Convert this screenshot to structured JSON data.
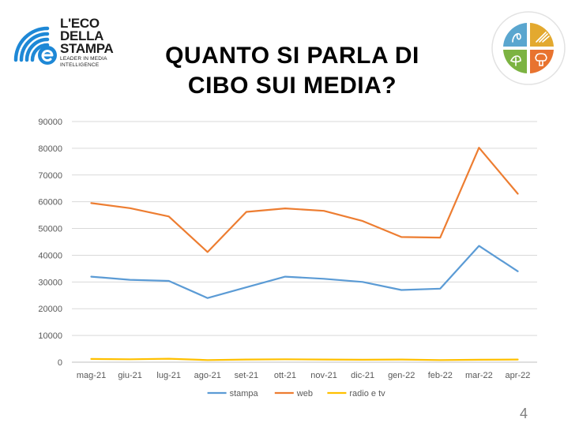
{
  "logo": {
    "line1": "L'ECO",
    "line2": "DELLA",
    "line3": "STAMPA",
    "tagline1": "LEADER IN MEDIA",
    "tagline2": "INTELLIGENCE",
    "icon": "eco-della-stampa-logo-icon",
    "color": "#1e88d6"
  },
  "title_line1": "QUANTO SI PARLA DI",
  "title_line2": "CIBO SUI MEDIA?",
  "badge_icon": "food-categories-badge-icon",
  "page_number": "4",
  "chart_data": {
    "type": "line",
    "categories": [
      "mag-21",
      "giu-21",
      "lug-21",
      "ago-21",
      "set-21",
      "ott-21",
      "nov-21",
      "dic-21",
      "gen-22",
      "feb-22",
      "mar-22",
      "apr-22"
    ],
    "series": [
      {
        "name": "stampa",
        "color": "#5b9bd5",
        "values": [
          32000,
          30800,
          30400,
          24000,
          28000,
          32000,
          31200,
          30000,
          27000,
          27500,
          43500,
          34000
        ]
      },
      {
        "name": "web",
        "color": "#ed7d31",
        "values": [
          59500,
          57600,
          54500,
          41200,
          56200,
          57500,
          56600,
          52800,
          46800,
          46600,
          80200,
          63000
        ]
      },
      {
        "name": "radio e tv",
        "color": "#ffc000",
        "values": [
          1200,
          1100,
          1300,
          800,
          1000,
          1100,
          1000,
          900,
          1000,
          800,
          900,
          1000
        ]
      }
    ],
    "yticks": [
      "0",
      "10000",
      "20000",
      "30000",
      "40000",
      "50000",
      "60000",
      "70000",
      "80000",
      "90000"
    ],
    "ylim": [
      0,
      90000
    ],
    "grid": true,
    "legend_position": "bottom"
  }
}
